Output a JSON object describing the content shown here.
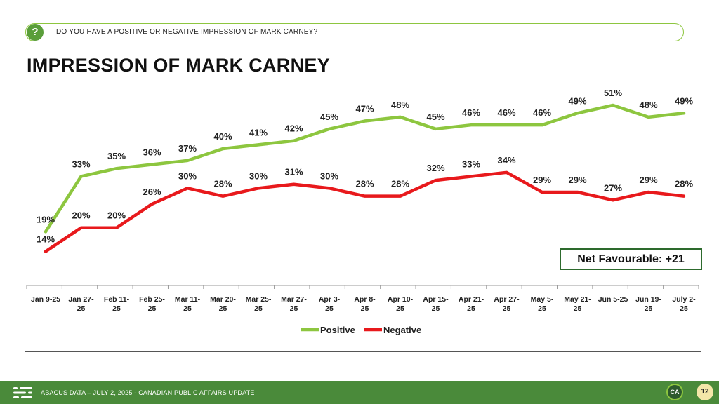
{
  "question": "DO YOU HAVE A POSITIVE OR NEGATIVE IMPRESSION OF MARK CARNEY?",
  "title": "IMPRESSION OF MARK CARNEY",
  "net_favourable": "Net Favourable: +21",
  "footer": {
    "text": "ABACUS DATA – JULY 2, 2025 - CANADIAN PUBLIC AFFAIRS UPDATE",
    "logo": "CA",
    "page": "12"
  },
  "icons": {
    "question": "question-icon",
    "brand": "abacus-logo-icon"
  },
  "colors": {
    "positive": "#8dc63f",
    "negative": "#e8191c",
    "accent": "#4a8a3a"
  },
  "chart_data": {
    "type": "line",
    "categories": [
      "Jan 9-25",
      "Jan 27-25",
      "Feb 11-25",
      "Feb 25-25",
      "Mar 11-25",
      "Mar 20-25",
      "Mar 25-25",
      "Mar 27-25",
      "Apr 3-25",
      "Apr 8-25",
      "Apr 10-25",
      "Apr 15-25",
      "Apr 21-25",
      "Apr 27-25",
      "May 5-25",
      "May 21-25",
      "Jun 5-25",
      "Jun 19-25",
      "July 2-25"
    ],
    "category_lines": [
      [
        "Jan 9-25"
      ],
      [
        "Jan 27-",
        "25"
      ],
      [
        "Feb 11-",
        "25"
      ],
      [
        "Feb 25-",
        "25"
      ],
      [
        "Mar 11-",
        "25"
      ],
      [
        "Mar 20-",
        "25"
      ],
      [
        "Mar 25-",
        "25"
      ],
      [
        "Mar 27-",
        "25"
      ],
      [
        "Apr 3-",
        "25"
      ],
      [
        "Apr 8-",
        "25"
      ],
      [
        "Apr 10-",
        "25"
      ],
      [
        "Apr 15-",
        "25"
      ],
      [
        "Apr 21-",
        "25"
      ],
      [
        "Apr 27-",
        "25"
      ],
      [
        "May 5-",
        "25"
      ],
      [
        "May 21-",
        "25"
      ],
      [
        "Jun 5-25"
      ],
      [
        "Jun 19-",
        "25"
      ],
      [
        "July 2-",
        "25"
      ]
    ],
    "series": [
      {
        "name": "Positive",
        "values": [
          19,
          33,
          35,
          36,
          37,
          40,
          41,
          42,
          45,
          47,
          48,
          45,
          46,
          46,
          46,
          49,
          51,
          48,
          49
        ]
      },
      {
        "name": "Negative",
        "values": [
          14,
          20,
          20,
          26,
          30,
          28,
          30,
          31,
          30,
          28,
          28,
          32,
          33,
          34,
          29,
          29,
          27,
          29,
          28
        ]
      }
    ],
    "label_suffix": "%",
    "legend_position": "bottom",
    "grid": false,
    "y_axis_shown": false
  }
}
